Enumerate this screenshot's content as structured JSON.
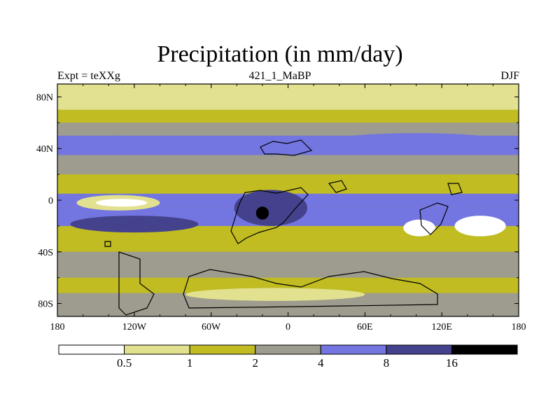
{
  "title": "Precipitation (in mm/day)",
  "left_label": "Expt = teXXg",
  "center_label": "421_1_MaBP",
  "right_label": "DJF",
  "colors": {
    "white": "#ffffff",
    "light_yellow": "#e2e18f",
    "olive": "#c0bc22",
    "gray": "#9e9c8e",
    "periwinkle": "#7375e0",
    "dark_blue": "#44428c",
    "black": "#000000"
  },
  "chart_data": {
    "type": "heatmap",
    "title": "Precipitation (in mm/day)",
    "variable": "Precipitation",
    "units": "mm/day",
    "experiment": "Expt = teXXg",
    "period": "421_1_MaBP",
    "season": "DJF",
    "x_axis": {
      "range": [
        -180,
        180
      ],
      "ticks": [
        -180,
        -120,
        -60,
        0,
        60,
        120,
        180
      ],
      "tick_labels": [
        "180",
        "120W",
        "60W",
        "0",
        "60E",
        "120E",
        "180"
      ]
    },
    "y_axis": {
      "range": [
        -90,
        90
      ],
      "ticks": [
        80,
        40,
        0,
        -40,
        -80
      ],
      "tick_labels": [
        "80N",
        "40N",
        "0",
        "40S",
        "80S"
      ]
    },
    "colorbar": {
      "levels": [
        0.5,
        1,
        2,
        4,
        8,
        16
      ],
      "level_labels": [
        "0.5",
        "1",
        "2",
        "4",
        "8",
        "16"
      ],
      "bins": [
        {
          "range": "< 0.5",
          "color": "#ffffff"
        },
        {
          "range": "0.5–1",
          "color": "#e2e18f"
        },
        {
          "range": "1–2",
          "color": "#c0bc22"
        },
        {
          "range": "2–4",
          "color": "#9e9c8e"
        },
        {
          "range": "4–8",
          "color": "#7375e0"
        },
        {
          "range": "8–16",
          "color": "#44428c"
        },
        {
          "range": "> 16",
          "color": "#000000"
        }
      ]
    },
    "zonal_bands": [
      {
        "lat": [
          70,
          90
        ],
        "color": "#e2e18f"
      },
      {
        "lat": [
          60,
          70
        ],
        "color": "#c0bc22"
      },
      {
        "lat": [
          50,
          60
        ],
        "color": "#9e9c8e"
      },
      {
        "lat": [
          35,
          50
        ],
        "color": "#7375e0"
      },
      {
        "lat": [
          20,
          35
        ],
        "color": "#9e9c8e"
      },
      {
        "lat": [
          5,
          20
        ],
        "color": "#c0bc22"
      },
      {
        "lat": [
          -5,
          5
        ],
        "color": "#7375e0"
      },
      {
        "lat": [
          -20,
          -5
        ],
        "color": "#7375e0"
      },
      {
        "lat": [
          -40,
          -20
        ],
        "color": "#c0bc22"
      },
      {
        "lat": [
          -60,
          -40
        ],
        "color": "#9e9c8e"
      },
      {
        "lat": [
          -72,
          -60
        ],
        "color": "#c0bc22"
      },
      {
        "lat": [
          -90,
          -72
        ],
        "color": "#9e9c8e"
      }
    ],
    "features": [
      {
        "name": "north-pacific-storm-track",
        "lon": [
          -175,
          -95
        ],
        "lat": [
          36,
          50
        ],
        "color": "#7375e0"
      },
      {
        "name": "north-atlantic-storm-track",
        "lon": [
          -35,
          0
        ],
        "lat": [
          38,
          48
        ],
        "color": "#7375e0"
      },
      {
        "name": "eurasia-high-lat-rain",
        "lon": [
          30,
          170
        ],
        "lat": [
          38,
          52
        ],
        "color": "#7375e0"
      },
      {
        "name": "pacific-dry-zone",
        "lon": [
          -165,
          -100
        ],
        "lat": [
          -8,
          4
        ],
        "color": "#e2e18f"
      },
      {
        "name": "pacific-dry-core",
        "lon": [
          -150,
          -110
        ],
        "lat": [
          -5,
          1
        ],
        "color": "#ffffff"
      },
      {
        "name": "south-pacific-convergence",
        "lon": [
          -170,
          -70
        ],
        "lat": [
          -25,
          -12
        ],
        "color": "#44428c"
      },
      {
        "name": "atlantic-amazon-convection",
        "lon": [
          -42,
          15
        ],
        "lat": [
          -20,
          8
        ],
        "color": "#44428c"
      },
      {
        "name": "african-maximum",
        "lon": [
          -25,
          -15
        ],
        "lat": [
          -15,
          -5
        ],
        "color": "#000000"
      },
      {
        "name": "australia-dry",
        "lon": [
          90,
          115
        ],
        "lat": [
          -28,
          -15
        ],
        "color": "#ffffff"
      },
      {
        "name": "southeast-pacific-dry",
        "lon": [
          130,
          170
        ],
        "lat": [
          -28,
          -12
        ],
        "color": "#ffffff"
      },
      {
        "name": "southern-ocean-dry",
        "lon": [
          -80,
          60
        ],
        "lat": [
          -78,
          -68
        ],
        "color": "#e2e18f"
      }
    ]
  }
}
